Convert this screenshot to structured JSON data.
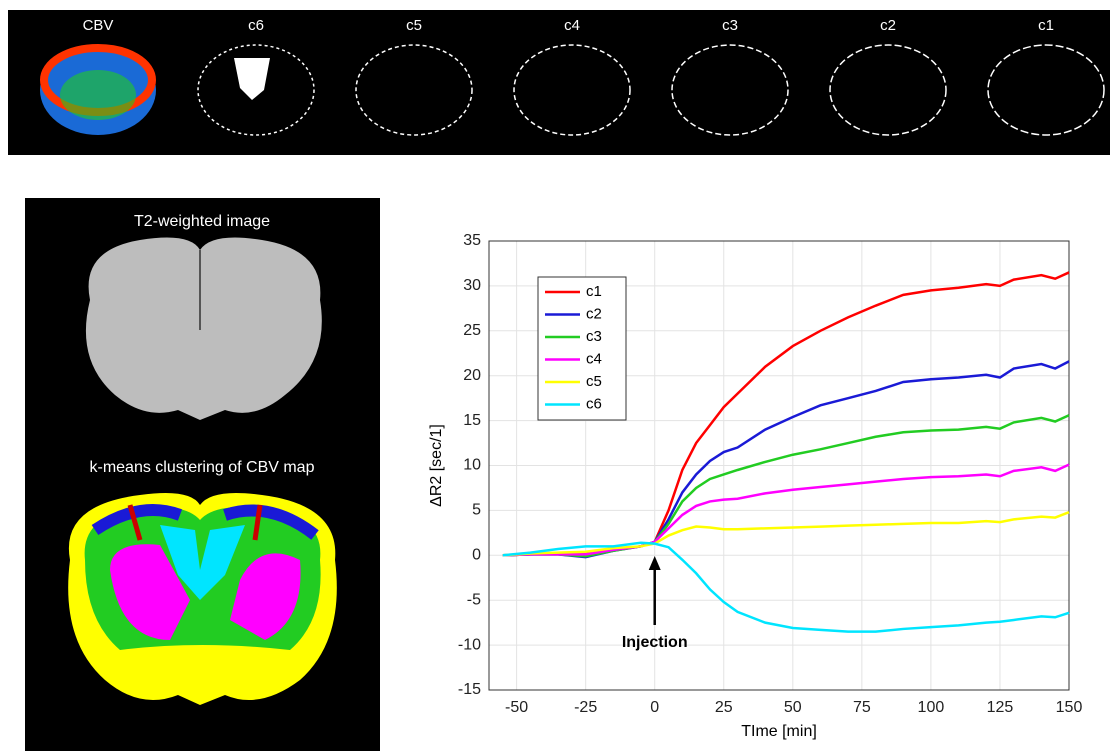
{
  "image_labels": [
    "CBV",
    "c6",
    "c5",
    "c4",
    "c3",
    "c2",
    "c1"
  ],
  "left_panel": {
    "top_title": "T2-weighted image",
    "bottom_title": "k-means clustering of CBV map"
  },
  "chart_data": {
    "type": "line",
    "x_label": "TIme [min]",
    "y_label": "ΔR2 [sec/1]",
    "annotation": "Injection",
    "x": [
      -55,
      -45,
      -35,
      -25,
      -15,
      -5,
      0,
      5,
      10,
      15,
      20,
      25,
      30,
      40,
      50,
      60,
      70,
      80,
      90,
      100,
      110,
      120,
      125,
      130,
      140,
      145,
      150
    ],
    "series": [
      {
        "name": "c1",
        "color": "#ff0000",
        "values": [
          0,
          0.1,
          0.2,
          0.2,
          0.6,
          1.0,
          1.5,
          5,
          9.5,
          12.5,
          14.5,
          16.5,
          18,
          21,
          23.3,
          25,
          26.5,
          27.8,
          29,
          29.5,
          29.8,
          30.2,
          30,
          30.7,
          31.2,
          30.8,
          31.5
        ]
      },
      {
        "name": "c2",
        "color": "#1a1ad6",
        "values": [
          0,
          0.1,
          0.1,
          -0.2,
          0.5,
          1.0,
          1.5,
          4,
          7,
          9,
          10.5,
          11.5,
          12,
          14,
          15.4,
          16.7,
          17.5,
          18.3,
          19.3,
          19.6,
          19.8,
          20.1,
          19.8,
          20.8,
          21.3,
          20.8,
          21.6
        ]
      },
      {
        "name": "c3",
        "color": "#22cc22",
        "values": [
          0,
          0.1,
          0.1,
          -0.1,
          0.5,
          1.0,
          1.5,
          3.5,
          6,
          7.5,
          8.5,
          9,
          9.5,
          10.4,
          11.2,
          11.8,
          12.5,
          13.2,
          13.7,
          13.9,
          14,
          14.3,
          14.1,
          14.8,
          15.3,
          14.9,
          15.6
        ]
      },
      {
        "name": "c4",
        "color": "#ff00ff",
        "values": [
          0,
          0.1,
          0.1,
          0.1,
          0.6,
          1.0,
          1.5,
          3,
          4.5,
          5.5,
          6,
          6.2,
          6.3,
          6.9,
          7.3,
          7.6,
          7.9,
          8.2,
          8.5,
          8.7,
          8.8,
          9,
          8.8,
          9.4,
          9.8,
          9.4,
          10.1
        ]
      },
      {
        "name": "c5",
        "color": "#ffff00",
        "values": [
          0,
          0.2,
          0.3,
          0.4,
          0.8,
          1.0,
          1.3,
          2.2,
          2.8,
          3.2,
          3.1,
          2.9,
          2.9,
          3.0,
          3.1,
          3.2,
          3.3,
          3.4,
          3.5,
          3.6,
          3.6,
          3.8,
          3.7,
          4.0,
          4.3,
          4.2,
          4.8
        ]
      },
      {
        "name": "c6",
        "color": "#00e5ff",
        "values": [
          0,
          0.3,
          0.7,
          1.0,
          1.0,
          1.4,
          1.3,
          0.9,
          -0.5,
          -2,
          -3.8,
          -5.2,
          -6.3,
          -7.5,
          -8.1,
          -8.3,
          -8.5,
          -8.5,
          -8.2,
          -8.0,
          -7.8,
          -7.5,
          -7.4,
          -7.2,
          -6.8,
          -6.9,
          -6.4
        ]
      }
    ],
    "xlim": [
      -60,
      150
    ],
    "xticks": [
      -50,
      -25,
      0,
      25,
      50,
      75,
      100,
      125,
      150
    ],
    "ylim": [
      -15,
      35
    ],
    "yticks": [
      -15,
      -10,
      -5,
      0,
      5,
      10,
      15,
      20,
      25,
      30,
      35
    ],
    "grid": true,
    "legend": "upper-left"
  }
}
